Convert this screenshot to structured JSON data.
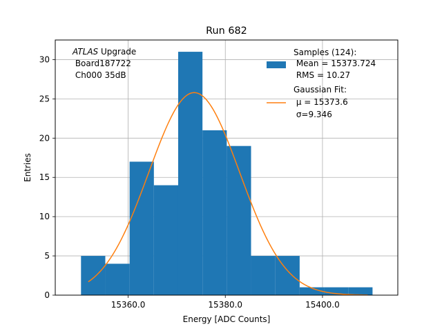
{
  "chart_data": {
    "type": "bar",
    "title": "Run 682",
    "xlabel": "Energy [ADC Counts]",
    "ylabel": "Entries",
    "xlim": [
      15345.0,
      15415.5
    ],
    "ylim": [
      0,
      32.5
    ],
    "grid": true,
    "x_ticks": [
      15360,
      15380,
      15400
    ],
    "x_tick_labels": [
      "15360.0",
      "15380.0",
      "15400.0"
    ],
    "y_ticks": [
      0,
      5,
      10,
      15,
      20,
      25,
      30
    ],
    "y_tick_labels": [
      "0",
      "5",
      "10",
      "15",
      "20",
      "25",
      "30"
    ],
    "bar_color": "#1f77b4",
    "fit_color": "#ff7f0e",
    "bin_edges": [
      15350.3,
      15355.3,
      15360.3,
      15365.3,
      15370.3,
      15375.3,
      15380.3,
      15385.3,
      15390.3,
      15395.3,
      15400.3,
      15405.3,
      15410.3
    ],
    "counts": [
      5,
      4,
      17,
      14,
      31,
      21,
      19,
      5,
      5,
      1,
      1,
      1
    ],
    "fit": {
      "type": "gaussian",
      "mu": 15373.6,
      "sigma": 9.346,
      "amplitude": 25.8,
      "x_range": [
        15351.8,
        15409.3
      ]
    },
    "annotation": {
      "line1_italic": "ATLAS",
      "line1_rest": " Upgrade",
      "line2": " Board187722",
      "line3": " Ch000 35dB"
    },
    "legend": {
      "position": "top-right",
      "samples_header": "Samples (124):",
      "samples_mean": " Mean = 15373.724",
      "samples_rms": " RMS = 10.27",
      "fit_header": "Gaussian Fit:",
      "fit_mu": " μ = 15373.6",
      "fit_sigma": " σ=9.346"
    }
  }
}
